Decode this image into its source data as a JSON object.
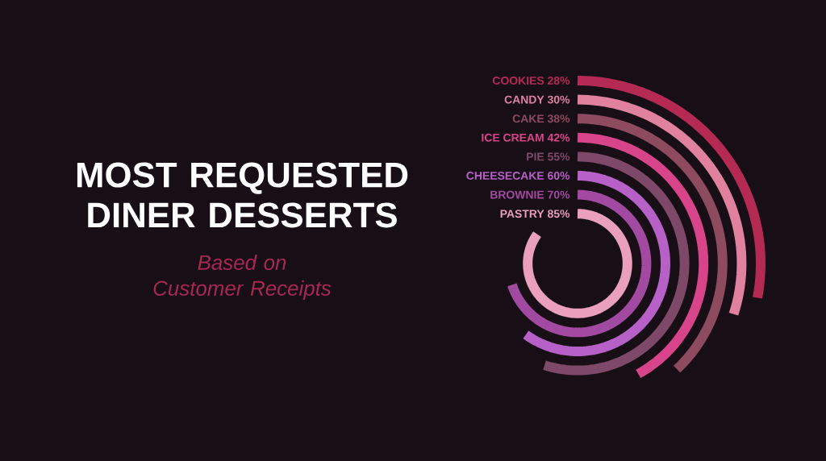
{
  "chart_data": {
    "type": "other",
    "title": "MOST REQUESTED DINER DESSERTS",
    "subtitle": "Based on Customer Receipts",
    "categories": [
      "COOKIES",
      "CANDY",
      "CAKE",
      "ICE CREAM",
      "PIE",
      "CHEESECAKE",
      "BROWNIE",
      "PASTRY"
    ],
    "values": [
      28,
      30,
      38,
      42,
      55,
      60,
      70,
      85
    ],
    "value_labels": [
      "28%",
      "30%",
      "38%",
      "42%",
      "55%",
      "60%",
      "70%",
      "85%"
    ],
    "colors": [
      "#b52a55",
      "#e0819f",
      "#8e4a5e",
      "#d8448a",
      "#7e4868",
      "#b660c8",
      "#a24aa2",
      "#eaa0bd"
    ]
  }
}
